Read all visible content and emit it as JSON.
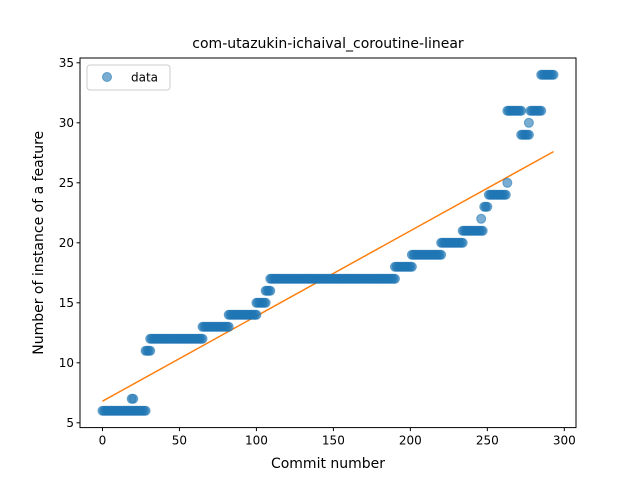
{
  "chart_data": {
    "type": "scatter",
    "title": "com-utazukin-ichaival_coroutine-linear",
    "xlabel": "Commit number",
    "ylabel": "Number of instance of a feature",
    "xlim": [
      -14.6,
      307.6
    ],
    "ylim": [
      4.6,
      35.4
    ],
    "xticks": [
      0,
      50,
      100,
      150,
      200,
      250,
      300
    ],
    "yticks": [
      5,
      10,
      15,
      20,
      25,
      30,
      35
    ],
    "grid": false,
    "legend": {
      "position": "upper-left",
      "entries": [
        "data"
      ]
    },
    "colors": {
      "data": "#1f77b4",
      "fit": "#ff7f0e"
    },
    "series": [
      {
        "name": "data",
        "kind": "scatter",
        "steps": [
          {
            "x_from": 0,
            "x_to": 28,
            "y": 6
          },
          {
            "x_from": 19,
            "x_to": 20,
            "y": 7
          },
          {
            "x_from": 28,
            "x_to": 31,
            "y": 11
          },
          {
            "x_from": 31,
            "x_to": 65,
            "y": 12
          },
          {
            "x_from": 65,
            "x_to": 82,
            "y": 13
          },
          {
            "x_from": 82,
            "x_to": 100,
            "y": 14
          },
          {
            "x_from": 100,
            "x_to": 106,
            "y": 15
          },
          {
            "x_from": 106,
            "x_to": 109,
            "y": 16
          },
          {
            "x_from": 109,
            "x_to": 190,
            "y": 17
          },
          {
            "x_from": 190,
            "x_to": 201,
            "y": 18
          },
          {
            "x_from": 201,
            "x_to": 220,
            "y": 19
          },
          {
            "x_from": 220,
            "x_to": 234,
            "y": 20
          },
          {
            "x_from": 234,
            "x_to": 247,
            "y": 21
          },
          {
            "x_from": 246,
            "x_to": 246,
            "y": 22
          },
          {
            "x_from": 248,
            "x_to": 250,
            "y": 23
          },
          {
            "x_from": 251,
            "x_to": 262,
            "y": 24
          },
          {
            "x_from": 263,
            "x_to": 263,
            "y": 25
          },
          {
            "x_from": 263,
            "x_to": 272,
            "y": 31
          },
          {
            "x_from": 272,
            "x_to": 277,
            "y": 29
          },
          {
            "x_from": 277,
            "x_to": 277,
            "y": 30
          },
          {
            "x_from": 278,
            "x_to": 285,
            "y": 31
          },
          {
            "x_from": 285,
            "x_to": 293,
            "y": 34
          }
        ]
      },
      {
        "kind": "line",
        "x": [
          0,
          293
        ],
        "y": [
          6.8,
          27.6
        ]
      }
    ]
  }
}
